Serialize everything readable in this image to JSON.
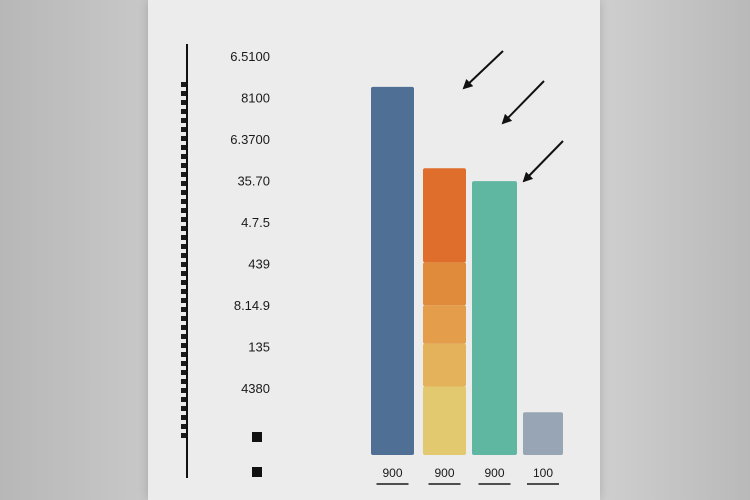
{
  "chart_data": {
    "type": "bar",
    "title": "",
    "xlabel": "",
    "ylabel": "",
    "y_tick_labels": [
      "6.5100",
      "8100",
      "6.3700",
      "35.70",
      "4.7.5",
      "439",
      "8.14.9",
      "135",
      "4380"
    ],
    "categories": [
      "900",
      "900",
      "900",
      "100"
    ],
    "series": [
      {
        "values": [
          8.6,
          0,
          0,
          0
        ]
      },
      {
        "values": [
          0,
          1.6,
          0,
          0
        ]
      },
      {
        "values": [
          0,
          1.0,
          0,
          0
        ]
      },
      {
        "values": [
          0,
          0.9,
          0,
          0
        ]
      },
      {
        "values": [
          0,
          1.0,
          0,
          0
        ]
      },
      {
        "values": [
          0,
          2.2,
          0,
          0
        ]
      },
      {
        "values": [
          0,
          0,
          6.4,
          0
        ]
      },
      {
        "values": [
          0,
          0,
          0,
          1.0
        ]
      }
    ],
    "ylim": [
      0,
      10
    ],
    "grid": false,
    "legend": "none",
    "annotations": [
      "arrow",
      "arrow",
      "arrow"
    ],
    "colors": [
      "#4f6f95",
      "#e2c86e",
      "#e3b25a",
      "#e39d4b",
      "#e08a3b",
      "#df6d2b",
      "#5fb7a1",
      "#97a5b4"
    ]
  }
}
